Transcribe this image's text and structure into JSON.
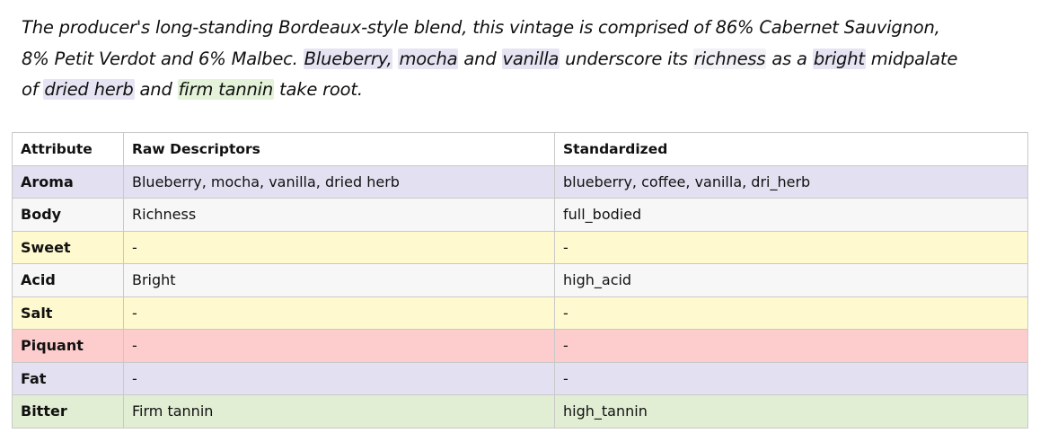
{
  "review": {
    "line1": "The producer's long-standing Bordeaux-style blend, this vintage is comprised of 86% Cabernet Sauvignon,",
    "line2_a": "8% Petit Verdot and 6% Malbec. ",
    "hl_blueberry": "Blueberry,",
    "sep1": " ",
    "hl_mocha": "mocha",
    "sep2": " and ",
    "hl_vanilla": "vanilla",
    "sep3": " underscore its ",
    "hl_richness": "richness",
    "sep4": " as a ",
    "hl_bright": "bright",
    "sep5": " midpalate",
    "line3_a": "of ",
    "hl_dried_herb": "dried herb",
    "sep6": " and ",
    "hl_firm_tannin": "firm tannin",
    "line3_end": " take root."
  },
  "table": {
    "headers": {
      "attribute": "Attribute",
      "raw": "Raw Descriptors",
      "standardized": "Standardized"
    },
    "rows": [
      {
        "attribute": "Aroma",
        "raw": "Blueberry, mocha, vanilla, dried herb",
        "standardized": "blueberry, coffee, vanilla, dri_herb",
        "color": "#e3e1f1"
      },
      {
        "attribute": "Body",
        "raw": "Richness",
        "standardized": "full_bodied",
        "color": "#f7f7f7"
      },
      {
        "attribute": "Sweet",
        "raw": "-",
        "standardized": "-",
        "color": "#fef9cf"
      },
      {
        "attribute": "Acid",
        "raw": "Bright",
        "standardized": "high_acid",
        "color": "#f7f7f7"
      },
      {
        "attribute": "Salt",
        "raw": "-",
        "standardized": "-",
        "color": "#fef9cf"
      },
      {
        "attribute": "Piquant",
        "raw": "-",
        "standardized": "-",
        "color": "#fdcdcd"
      },
      {
        "attribute": "Fat",
        "raw": "-",
        "standardized": "-",
        "color": "#e3e1f1"
      },
      {
        "attribute": "Bitter",
        "raw": "Firm tannin",
        "standardized": "high_tannin",
        "color": "#e1eed4"
      }
    ]
  },
  "colors": {
    "highlight_purple": "#e6e4f3",
    "highlight_light": "#f1f1f6",
    "highlight_green": "#e3f2d8"
  }
}
